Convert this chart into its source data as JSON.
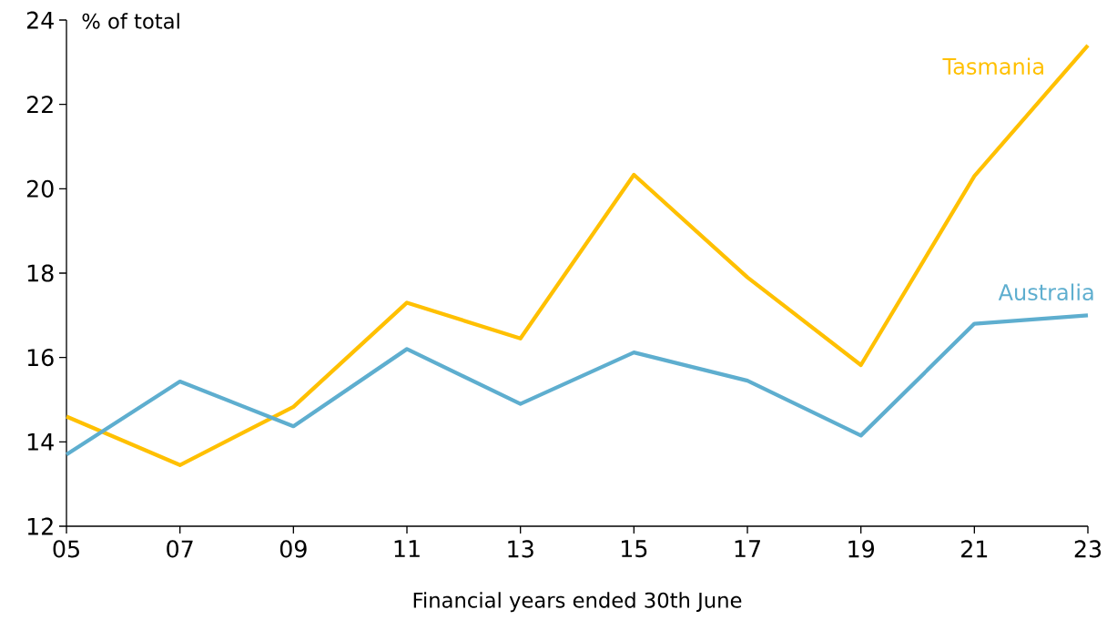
{
  "chart_data": {
    "type": "line",
    "ylabel": "% of total",
    "xlabel": "Financial years ended 30th June",
    "categories": [
      "05",
      "07",
      "09",
      "11",
      "13",
      "15",
      "17",
      "19",
      "21",
      "23"
    ],
    "ylim": [
      12,
      24
    ],
    "yticks": [
      12,
      14,
      16,
      18,
      20,
      22,
      24
    ],
    "series": [
      {
        "name": "Tasmania",
        "color": "#ffc000",
        "values": [
          14.6,
          13.45,
          14.83,
          17.3,
          16.45,
          20.33,
          17.9,
          15.82,
          20.3,
          23.4
        ]
      },
      {
        "name": "Australia",
        "color": "#5eaecf",
        "values": [
          13.7,
          15.43,
          14.37,
          16.2,
          14.9,
          16.12,
          15.45,
          14.15,
          16.8,
          17.0
        ]
      }
    ]
  }
}
